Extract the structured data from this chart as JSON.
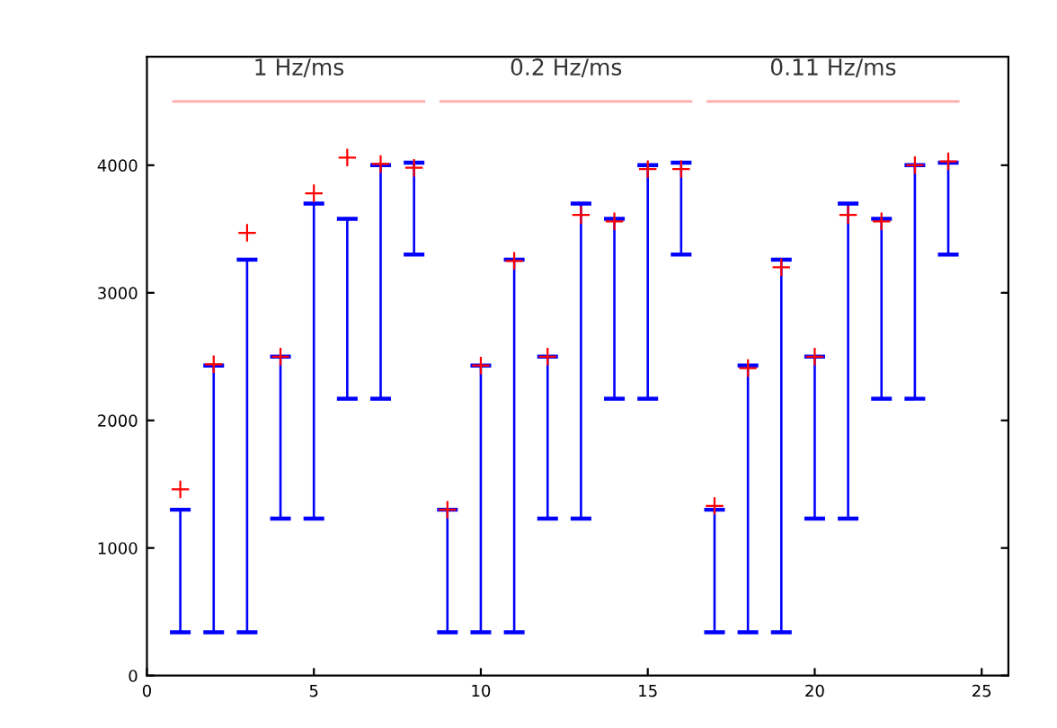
{
  "chart_data": {
    "type": "bar",
    "x": [
      1,
      2,
      3,
      4,
      5,
      6,
      7,
      8,
      9,
      10,
      11,
      12,
      13,
      14,
      15,
      16,
      17,
      18,
      19,
      20,
      21,
      22,
      23,
      24
    ],
    "series": [
      {
        "color": "#0000ff",
        "base": [
          340,
          340,
          340,
          1230,
          1230,
          2170,
          2170,
          3300,
          340,
          340,
          340,
          1230,
          1230,
          2170,
          2170,
          3300,
          340,
          340,
          340,
          1230,
          1230,
          2170,
          2170,
          3300
        ],
        "values": [
          960,
          2090,
          2920,
          1270,
          2470,
          1410,
          1830,
          720,
          960,
          2090,
          2920,
          1270,
          2470,
          1410,
          1830,
          720,
          960,
          2090,
          2920,
          1270,
          2470,
          1410,
          1830,
          720
        ]
      },
      {
        "type": "scatter",
        "color": "#ff0000",
        "marker": "cross",
        "values": [
          1460,
          2440,
          3470,
          2500,
          3780,
          4060,
          4010,
          3980,
          1300,
          2430,
          3250,
          2500,
          3610,
          3560,
          3970,
          3970,
          1330,
          2410,
          3200,
          2500,
          3610,
          3560,
          4000,
          4030
        ]
      },
      {
        "type": "line",
        "color": "#ffaaaa",
        "x": [
          0.8,
          8.3
        ],
        "values": [
          4500,
          4500
        ]
      },
      {
        "type": "line",
        "color": "#ffaaaa",
        "x": [
          8.8,
          16.3
        ],
        "values": [
          4500,
          4500
        ]
      },
      {
        "type": "line",
        "color": "#ffaaaa",
        "x": [
          16.8,
          24.3
        ],
        "values": [
          4500,
          4500
        ]
      }
    ],
    "annotations": [
      "1 Hz/ms",
      "0.2 Hz/ms",
      "0.11 Hz/ms"
    ],
    "xlim": [
      0,
      25.8
    ],
    "ylim": [
      0,
      4850
    ],
    "xticks": [
      0,
      5,
      10,
      15,
      20,
      25
    ],
    "yticks": [
      0,
      1000,
      2000,
      3000,
      4000
    ],
    "grid": false,
    "legend": false
  }
}
